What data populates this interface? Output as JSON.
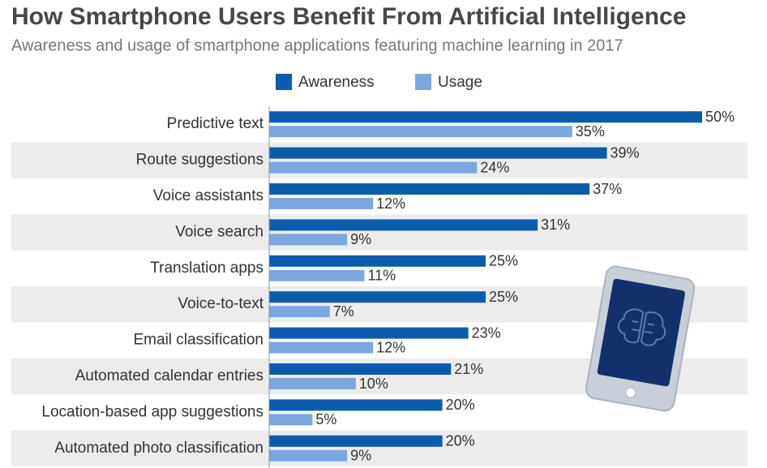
{
  "chart_data": {
    "type": "bar",
    "orientation": "horizontal",
    "title": "How Smartphone Users Benefit From Artificial Intelligence",
    "subtitle": "Awareness and usage of smartphone applications featuring machine learning in 2017",
    "categories": [
      "Predictive text",
      "Route suggestions",
      "Voice assistants",
      "Voice search",
      "Translation apps",
      "Voice-to-text",
      "Email classification",
      "Automated calendar entries",
      "Location-based app suggestions",
      "Automated photo classification"
    ],
    "series": [
      {
        "name": "Awareness",
        "color": "#0b5cad",
        "values": [
          50,
          39,
          37,
          31,
          25,
          25,
          23,
          21,
          20,
          20
        ],
        "value_labels": [
          "50%",
          "39%",
          "37%",
          "31%",
          "25%",
          "25%",
          "23%",
          "21%",
          "20%",
          "20%"
        ]
      },
      {
        "name": "Usage",
        "color": "#7ba7e1",
        "values": [
          35,
          24,
          12,
          9,
          11,
          7,
          12,
          10,
          5,
          9
        ],
        "value_labels": [
          "35%",
          "24%",
          "12%",
          "9%",
          "11%",
          "7%",
          "12%",
          "10%",
          "5%",
          "9%"
        ]
      }
    ],
    "xlim": [
      0,
      50
    ],
    "legend": "top"
  }
}
